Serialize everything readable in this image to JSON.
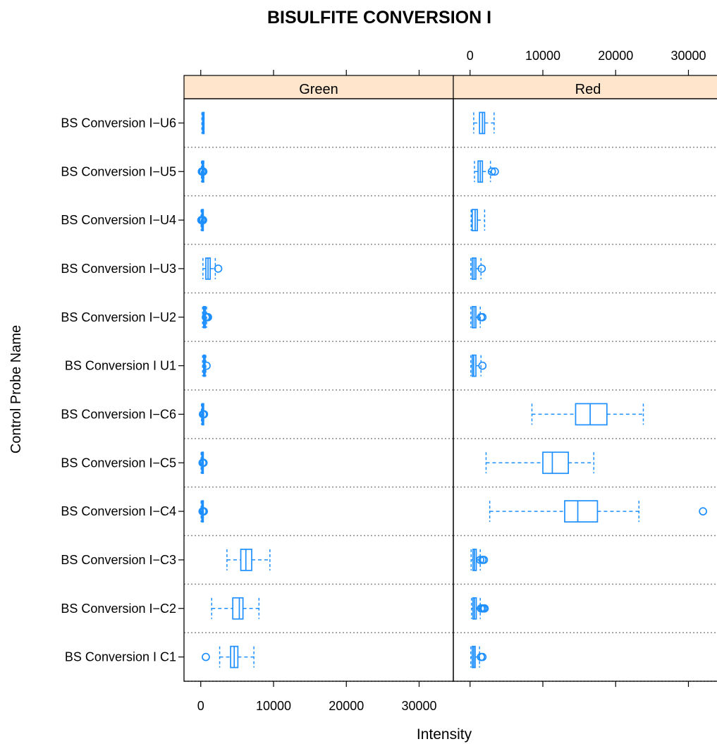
{
  "chart_data": {
    "type": "boxplot",
    "title": "BISULFITE CONVERSION I",
    "xlabel": "Intensity",
    "ylabel": "Control Probe Name",
    "xlim": [
      -2300,
      34700
    ],
    "x_ticks": [
      0,
      10000,
      20000,
      30000
    ],
    "x_tick_labels": [
      "0",
      "10000",
      "20000",
      "30000"
    ],
    "grid": "dotted horizontal separators between probe rows",
    "colors": {
      "box": "#1e8fff",
      "strip": "#ffe5cc",
      "separator": "#8a8a8a",
      "axis": "#000000"
    },
    "categories": [
      "BS Conversion I−U6",
      "BS Conversion I−U5",
      "BS Conversion I−U4",
      "BS Conversion I−U3",
      "BS Conversion I−U2",
      "BS Conversion I U1",
      "BS Conversion I−C6",
      "BS Conversion I−C5",
      "BS Conversion I−C4",
      "BS Conversion I−C3",
      "BS Conversion I−C2",
      "BS Conversion I C1"
    ],
    "panels": [
      {
        "name": "Green",
        "boxes": [
          {
            "min": 150,
            "q1": 250,
            "median": 300,
            "q3": 380,
            "max": 450,
            "outliers": []
          },
          {
            "min": 100,
            "q1": 200,
            "median": 260,
            "q3": 330,
            "max": 420,
            "outliers": [
              150,
              280,
              350
            ]
          },
          {
            "min": 50,
            "q1": 150,
            "median": 200,
            "q3": 280,
            "max": 350,
            "outliers": [
              80,
              230,
              320
            ]
          },
          {
            "min": 300,
            "q1": 700,
            "median": 1000,
            "q3": 1300,
            "max": 2000,
            "outliers": [
              2400
            ]
          },
          {
            "min": 250,
            "q1": 400,
            "median": 500,
            "q3": 650,
            "max": 800,
            "outliers": [
              700,
              850,
              1000
            ]
          },
          {
            "min": 250,
            "q1": 400,
            "median": 450,
            "q3": 550,
            "max": 700,
            "outliers": [
              800
            ]
          },
          {
            "min": 100,
            "q1": 200,
            "median": 250,
            "q3": 330,
            "max": 400,
            "outliers": [
              300,
              450
            ]
          },
          {
            "min": 50,
            "q1": 150,
            "median": 200,
            "q3": 280,
            "max": 350,
            "outliers": [
              250,
              380
            ]
          },
          {
            "min": 50,
            "q1": 150,
            "median": 200,
            "q3": 280,
            "max": 350,
            "outliers": [
              250,
              320,
              420
            ]
          },
          {
            "min": 3600,
            "q1": 5500,
            "median": 6200,
            "q3": 7000,
            "max": 9500,
            "outliers": []
          },
          {
            "min": 1500,
            "q1": 4400,
            "median": 5300,
            "q3": 5800,
            "max": 8000,
            "outliers": []
          },
          {
            "min": 2600,
            "q1": 4100,
            "median": 4600,
            "q3": 5100,
            "max": 7300,
            "outliers": [
              700
            ]
          }
        ]
      },
      {
        "name": "Red",
        "boxes": [
          {
            "min": 500,
            "q1": 1300,
            "median": 1700,
            "q3": 2000,
            "max": 3300,
            "outliers": []
          },
          {
            "min": 600,
            "q1": 1100,
            "median": 1400,
            "q3": 1700,
            "max": 2800,
            "outliers": [
              3000,
              3400
            ]
          },
          {
            "min": 150,
            "q1": 300,
            "median": 700,
            "q3": 1000,
            "max": 2000,
            "outliers": []
          },
          {
            "min": 100,
            "q1": 300,
            "median": 550,
            "q3": 800,
            "max": 1500,
            "outliers": [
              1600
            ]
          },
          {
            "min": 100,
            "q1": 300,
            "median": 550,
            "q3": 800,
            "max": 1400,
            "outliers": [
              1500,
              1700
            ]
          },
          {
            "min": 100,
            "q1": 300,
            "median": 500,
            "q3": 800,
            "max": 1500,
            "outliers": [
              1700
            ]
          },
          {
            "min": 8500,
            "q1": 14500,
            "median": 16500,
            "q3": 18800,
            "max": 23800,
            "outliers": []
          },
          {
            "min": 2200,
            "q1": 10000,
            "median": 11300,
            "q3": 13500,
            "max": 17000,
            "outliers": []
          },
          {
            "min": 2700,
            "q1": 13000,
            "median": 14800,
            "q3": 17500,
            "max": 23200,
            "outliers": [
              32000
            ]
          },
          {
            "min": 150,
            "q1": 400,
            "median": 600,
            "q3": 850,
            "max": 1400,
            "outliers": [
              1400,
              1700,
              1900
            ]
          },
          {
            "min": 200,
            "q1": 400,
            "median": 600,
            "q3": 850,
            "max": 1400,
            "outliers": [
              1500,
              1700,
              1900,
              2000
            ]
          },
          {
            "min": 100,
            "q1": 300,
            "median": 500,
            "q3": 700,
            "max": 1300,
            "outliers": [
              1500,
              1700
            ]
          }
        ]
      }
    ]
  }
}
